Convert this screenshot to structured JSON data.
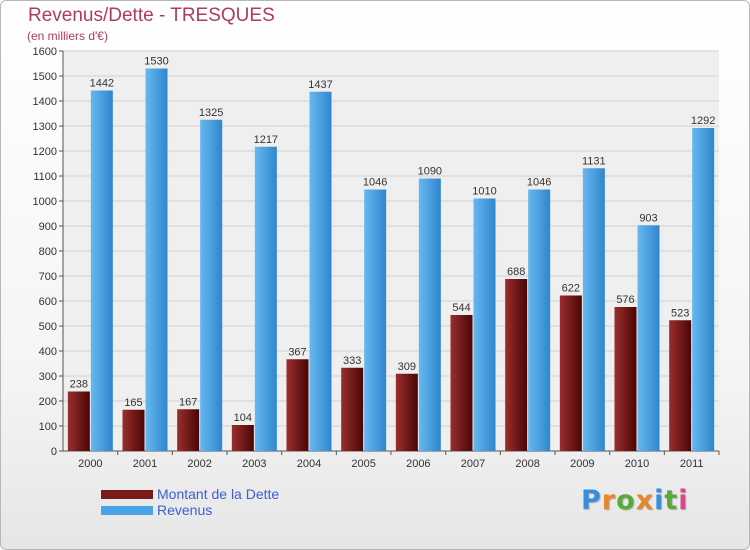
{
  "title": "Revenus/Dette - TRESQUES",
  "subtitle": "(en milliers d'€)",
  "logo": {
    "letters": [
      "P",
      "r",
      "o",
      "x",
      "i",
      "t",
      "i"
    ],
    "colors": [
      "#3a8ddb",
      "#e8862c",
      "#5aa83a",
      "#e8862c",
      "#3a8ddb",
      "#5aa83a",
      "#d64a8c"
    ]
  },
  "chart_data": {
    "type": "bar",
    "categories": [
      "2000",
      "2001",
      "2002",
      "2003",
      "2004",
      "2005",
      "2006",
      "2007",
      "2008",
      "2009",
      "2010",
      "2011"
    ],
    "series": [
      {
        "name": "Montant de la Dette",
        "color": "#7a1a1a",
        "values": [
          238,
          165,
          167,
          104,
          367,
          333,
          309,
          544,
          688,
          622,
          576,
          523
        ]
      },
      {
        "name": "Revenus",
        "color": "#4aa3e6",
        "values": [
          1442,
          1530,
          1325,
          1217,
          1437,
          1046,
          1090,
          1010,
          1046,
          1131,
          903,
          1292
        ]
      }
    ],
    "ylim": [
      0,
      1600
    ],
    "yticks": [
      "0",
      "100",
      "200",
      "300",
      "400",
      "500",
      "600",
      "700",
      "800",
      "900",
      "1000",
      "1100",
      "1200",
      "1300",
      "1400",
      "1500",
      "1600"
    ],
    "grid": true,
    "legend": "bottom-left"
  }
}
